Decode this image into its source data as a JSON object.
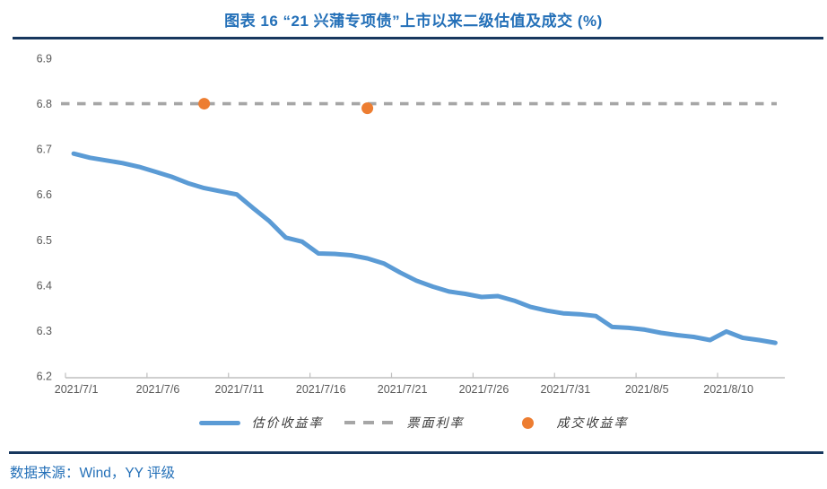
{
  "header": {
    "title": "图表 16 “21 兴蒲专项债”上市以来二级估值及成交 (%)"
  },
  "footer": {
    "source": "数据来源：Wind，YY 评级"
  },
  "chart_data": {
    "type": "line",
    "title": "图表 16 “21 兴蒲专项债”上市以来二级估值及成交 (%)",
    "xlabel": "",
    "ylabel": "",
    "ylim": [
      6.2,
      6.9
    ],
    "yticks": [
      6.9,
      6.8,
      6.7,
      6.6,
      6.5,
      6.4,
      6.3,
      6.2
    ],
    "x_tick_labels": [
      "2021/7/1",
      "2021/7/6",
      "2021/7/11",
      "2021/7/16",
      "2021/7/21",
      "2021/7/26",
      "2021/7/31",
      "2021/8/5",
      "2021/8/10"
    ],
    "grid": false,
    "legend_position": "bottom",
    "x": [
      "2021/7/1",
      "2021/7/2",
      "2021/7/3",
      "2021/7/4",
      "2021/7/5",
      "2021/7/6",
      "2021/7/7",
      "2021/7/8",
      "2021/7/9",
      "2021/7/10",
      "2021/7/11",
      "2021/7/12",
      "2021/7/13",
      "2021/7/14",
      "2021/7/15",
      "2021/7/16",
      "2021/7/17",
      "2021/7/18",
      "2021/7/19",
      "2021/7/20",
      "2021/7/21",
      "2021/7/22",
      "2021/7/23",
      "2021/7/24",
      "2021/7/25",
      "2021/7/26",
      "2021/7/27",
      "2021/7/28",
      "2021/7/29",
      "2021/7/30",
      "2021/7/31",
      "2021/8/1",
      "2021/8/2",
      "2021/8/3",
      "2021/8/4",
      "2021/8/5",
      "2021/8/6",
      "2021/8/7",
      "2021/8/8",
      "2021/8/9",
      "2021/8/10",
      "2021/8/11",
      "2021/8/12",
      "2021/8/13"
    ],
    "series": [
      {
        "name": "估价收益率",
        "type": "line",
        "color": "#5B9BD5",
        "values": [
          6.69,
          6.681,
          6.675,
          6.669,
          6.661,
          6.65,
          6.639,
          6.625,
          6.614,
          6.607,
          6.6,
          6.57,
          6.541,
          6.505,
          6.496,
          6.47,
          6.469,
          6.466,
          6.459,
          6.448,
          6.428,
          6.41,
          6.397,
          6.386,
          6.381,
          6.374,
          6.376,
          6.366,
          6.352,
          6.344,
          6.338,
          6.336,
          6.332,
          6.308,
          6.306,
          6.302,
          6.295,
          6.29,
          6.286,
          6.279,
          6.298,
          6.284,
          6.279,
          6.273
        ]
      },
      {
        "name": "票面利率",
        "type": "dashed-line",
        "color": "#A6A6A6",
        "value": 6.8
      },
      {
        "name": "成交收益率",
        "type": "scatter",
        "color": "#ED7D31",
        "points": [
          {
            "date": "2021/7/9",
            "value": 6.8
          },
          {
            "date": "2021/7/19",
            "value": 6.79
          }
        ]
      }
    ],
    "axis_color": "#BFBFBF",
    "tick_label_color": "#595959"
  }
}
